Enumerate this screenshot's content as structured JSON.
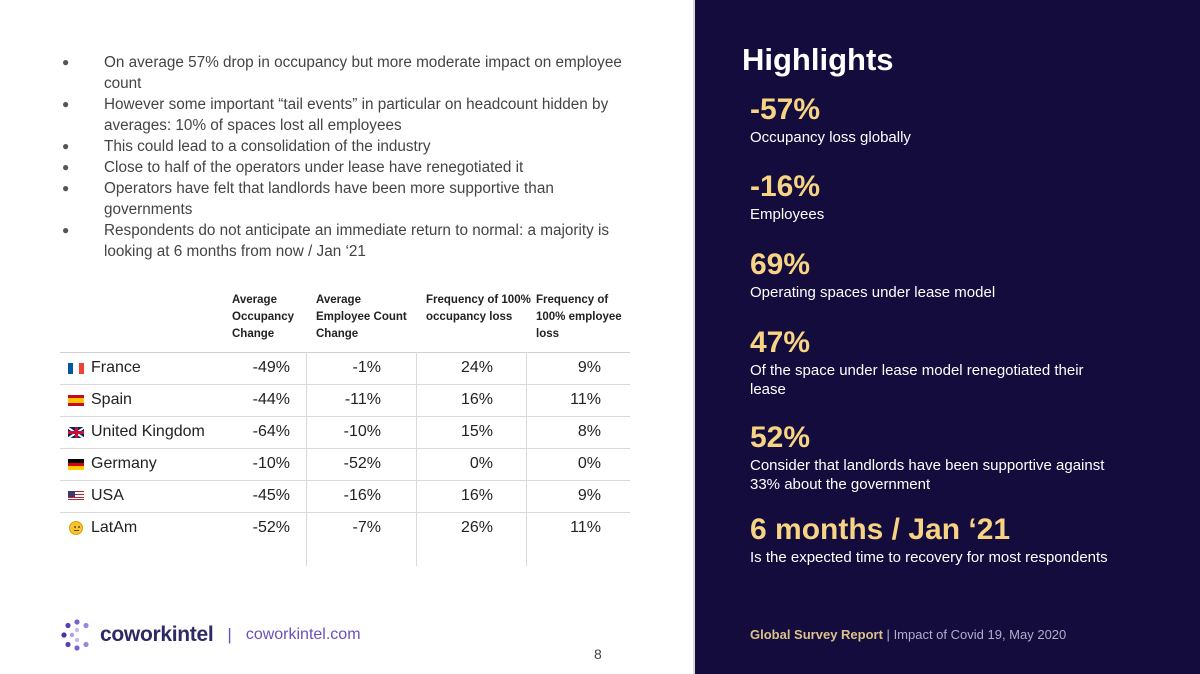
{
  "bullets": [
    "On average 57% drop in occupancy but more moderate impact on employee count",
    "However some important “tail events” in particular on headcount hidden by averages: 10% of spaces lost all employees",
    "This could lead to a consolidation of the industry",
    "Close to half of the operators under lease have renegotiated it",
    "Operators have felt that landlords have been more supportive than governments",
    "Respondents do not anticipate an immediate return to normal: a majority is looking at 6 months from now / Jan ‘21"
  ],
  "table": {
    "headers": [
      "Average Occupancy Change",
      "Average Employee Count Change",
      "Frequency of 100% occupancy loss",
      "Frequency of 100% employee loss"
    ],
    "rows": [
      {
        "country": "France",
        "occupancy": "-49%",
        "employees": "-1%",
        "occ_loss": "24%",
        "emp_loss": "9%"
      },
      {
        "country": "Spain",
        "occupancy": "-44%",
        "employees": "-11%",
        "occ_loss": "16%",
        "emp_loss": "11%"
      },
      {
        "country": "United Kingdom",
        "occupancy": "-64%",
        "employees": "-10%",
        "occ_loss": "15%",
        "emp_loss": "8%"
      },
      {
        "country": "Germany",
        "occupancy": "-10%",
        "employees": "-52%",
        "occ_loss": "0%",
        "emp_loss": "0%"
      },
      {
        "country": "USA",
        "occupancy": "-45%",
        "employees": "-16%",
        "occ_loss": "16%",
        "emp_loss": "9%"
      },
      {
        "country": "LatAm",
        "occupancy": "-52%",
        "employees": "-7%",
        "occ_loss": "26%",
        "emp_loss": "11%"
      }
    ]
  },
  "brand": {
    "name": "coworkintel",
    "separator": "|",
    "url": "coworkintel.com"
  },
  "page_number": "8",
  "highlights": {
    "title": "Highlights",
    "stats": [
      {
        "value": "-57%",
        "label": "Occupancy loss globally"
      },
      {
        "value": "-16%",
        "label": "Employees"
      },
      {
        "value": "69%",
        "label": "Operating spaces under lease model"
      },
      {
        "value": "47%",
        "label": "Of the space under lease model renegotiated their lease"
      },
      {
        "value": "52%",
        "label": "Consider that landlords have been supportive against 33% about the government"
      },
      {
        "value": "6 months / Jan ‘21",
        "label": "Is the expected time to recovery for most respondents"
      }
    ]
  },
  "footer": {
    "report": "Global Survey Report",
    "separator": "|",
    "subtitle": "Impact of Covid 19, May 2020"
  },
  "colors": {
    "panel": "#130c3d",
    "accent": "#f7d484",
    "brand": "#2d2a66",
    "link": "#6b4fbb"
  }
}
